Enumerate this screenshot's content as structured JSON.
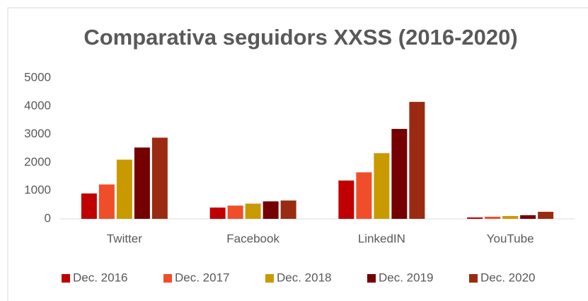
{
  "chart_data": {
    "type": "bar",
    "title": "Comparativa seguidors XXSS (2016-2020)",
    "categories": [
      "Twitter",
      "Facebook",
      "LinkedIN",
      "YouTube"
    ],
    "series": [
      {
        "name": "Dec. 2016",
        "color": "#c00000",
        "values": [
          900,
          400,
          1360,
          50
        ]
      },
      {
        "name": "Dec. 2017",
        "color": "#f04e2a",
        "values": [
          1220,
          470,
          1650,
          75
        ]
      },
      {
        "name": "Dec. 2018",
        "color": "#c99a00",
        "values": [
          2100,
          540,
          2330,
          100
        ]
      },
      {
        "name": "Dec. 2019",
        "color": "#750000",
        "values": [
          2530,
          620,
          3190,
          130
        ]
      },
      {
        "name": "Dec. 2020",
        "color": "#9a2b12",
        "values": [
          2880,
          650,
          4150,
          250
        ]
      }
    ],
    "ylim": [
      0,
      5000
    ],
    "yticks": [
      0,
      1000,
      2000,
      3000,
      4000,
      5000
    ],
    "grid": false,
    "legend": "bottom"
  }
}
